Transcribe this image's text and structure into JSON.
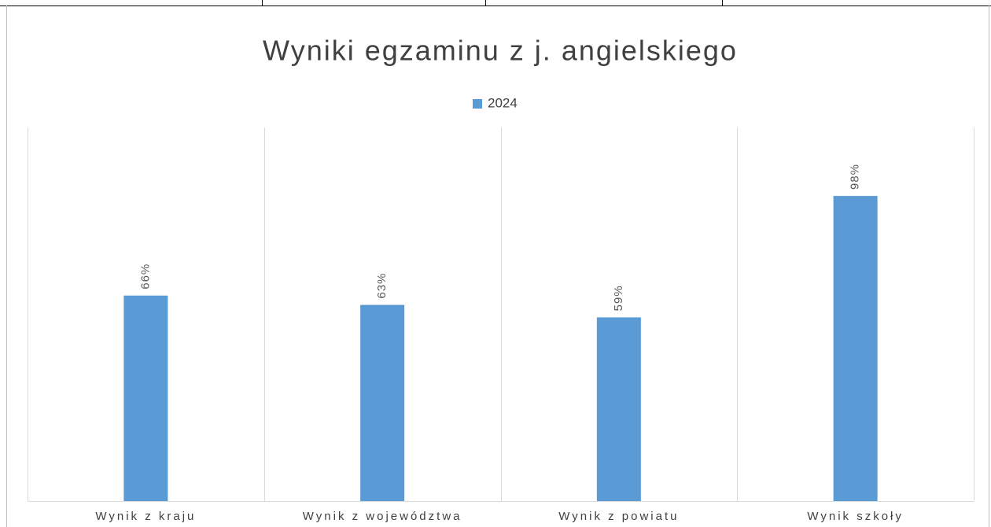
{
  "chart_data": {
    "type": "bar",
    "title": "Wyniki egzaminu z j. angielskiego",
    "categories": [
      "Wynik z kraju",
      "Wynik z województwa",
      "Wynik z powiatu",
      "Wynik szkoły"
    ],
    "series": [
      {
        "name": "2024",
        "color": "#5b9bd5",
        "values": [
          66,
          63,
          59,
          98
        ],
        "value_labels": [
          "66%",
          "63%",
          "59%",
          "98%"
        ]
      }
    ],
    "ylim": [
      0,
      120
    ],
    "legend": "top"
  }
}
